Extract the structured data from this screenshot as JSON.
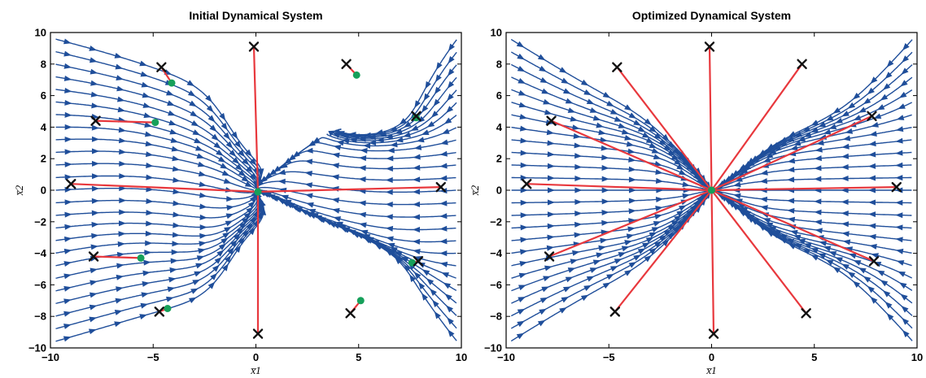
{
  "chart_data": [
    {
      "type": "streamplot",
      "title": "Initial Dynamical System",
      "xlabel": "x̅1",
      "ylabel": "x̅2",
      "xlim": [
        -10,
        10
      ],
      "ylim": [
        -10,
        10
      ],
      "xticks": [
        -10,
        -5,
        0,
        5,
        10
      ],
      "yticks": [
        10,
        8,
        6,
        4,
        2,
        0,
        -2,
        -4,
        -6,
        -8,
        -10
      ],
      "grid": false,
      "colors": {
        "streamlines": "#1f4e9a",
        "trajectories": "#e8383d",
        "start": "#111111",
        "end": "#16a05a"
      },
      "starts": [
        [
          -7.8,
          4.4
        ],
        [
          -4.6,
          7.8
        ],
        [
          -0.1,
          9.1
        ],
        [
          4.4,
          8.0
        ],
        [
          7.8,
          4.7
        ],
        [
          -9.0,
          0.4
        ],
        [
          9.0,
          0.2
        ],
        [
          -7.9,
          -4.2
        ],
        [
          -4.7,
          -7.7
        ],
        [
          0.1,
          -9.1
        ],
        [
          4.6,
          -7.8
        ],
        [
          7.9,
          -4.5
        ]
      ],
      "ends": [
        [
          -4.9,
          4.3
        ],
        [
          -4.1,
          6.8
        ],
        [
          0.1,
          -0.1
        ],
        [
          4.9,
          7.3
        ],
        [
          7.8,
          4.6
        ],
        [
          0.1,
          -0.1
        ],
        [
          0.1,
          -0.1
        ],
        [
          -5.6,
          -4.3
        ],
        [
          -4.3,
          -7.5
        ],
        [
          0.1,
          -0.1
        ],
        [
          5.1,
          -7.0
        ],
        [
          7.6,
          -4.6
        ]
      ]
    },
    {
      "type": "streamplot",
      "title": "Optimized Dynamical System",
      "xlabel": "x̅1",
      "ylabel": "x̅2",
      "xlim": [
        -10,
        10
      ],
      "ylim": [
        -10,
        10
      ],
      "xticks": [
        -10,
        -5,
        0,
        5,
        10
      ],
      "yticks": [
        10,
        8,
        6,
        4,
        2,
        0,
        -2,
        -4,
        -6,
        -8,
        -10
      ],
      "grid": false,
      "colors": {
        "streamlines": "#1f4e9a",
        "trajectories": "#e8383d",
        "start": "#111111",
        "end": "#16a05a"
      },
      "starts": [
        [
          -7.8,
          4.4
        ],
        [
          -4.6,
          7.8
        ],
        [
          -0.1,
          9.1
        ],
        [
          4.4,
          8.0
        ],
        [
          7.8,
          4.7
        ],
        [
          -9.0,
          0.4
        ],
        [
          9.0,
          0.2
        ],
        [
          -7.9,
          -4.2
        ],
        [
          -4.7,
          -7.7
        ],
        [
          0.1,
          -9.1
        ],
        [
          4.6,
          -7.8
        ],
        [
          7.9,
          -4.5
        ]
      ],
      "ends": [
        [
          0.0,
          0.0
        ]
      ]
    }
  ]
}
